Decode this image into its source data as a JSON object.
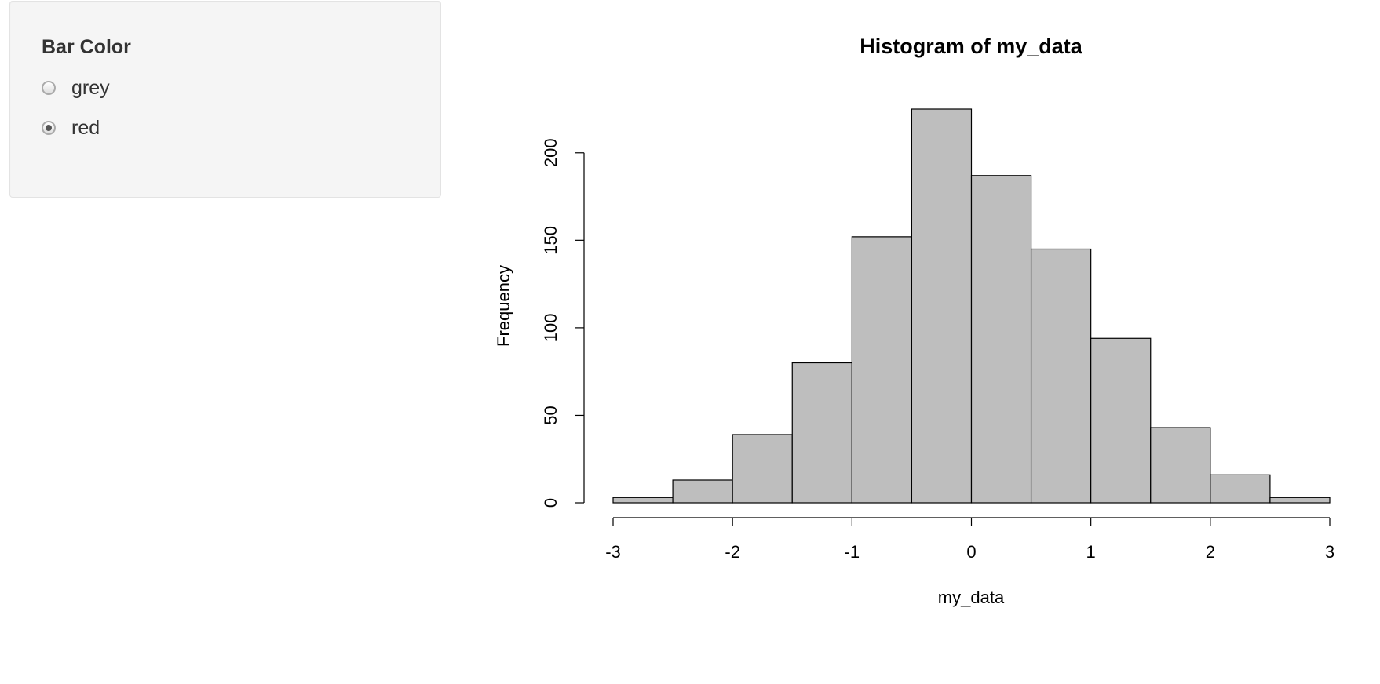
{
  "sidebar": {
    "title": "Bar Color",
    "options": [
      "grey",
      "red"
    ],
    "selected": "red"
  },
  "chart_data": {
    "type": "histogram",
    "title": "Histogram of my_data",
    "x_label": "my_data",
    "y_label": "Frequency",
    "bins": [
      -3,
      -2.5,
      -2,
      -1.5,
      -1,
      -0.5,
      0,
      0.5,
      1,
      1.5,
      2,
      2.5,
      3
    ],
    "values": [
      3,
      13,
      39,
      80,
      152,
      225,
      187,
      145,
      94,
      43,
      16,
      3
    ],
    "color": "#bebebe",
    "xlim": [
      -3,
      3
    ],
    "xticks": [
      -3,
      -2,
      -1,
      0,
      1,
      2,
      3
    ],
    "ylim": [
      0,
      225
    ],
    "yticks": [
      0,
      50,
      100,
      150,
      200
    ]
  }
}
